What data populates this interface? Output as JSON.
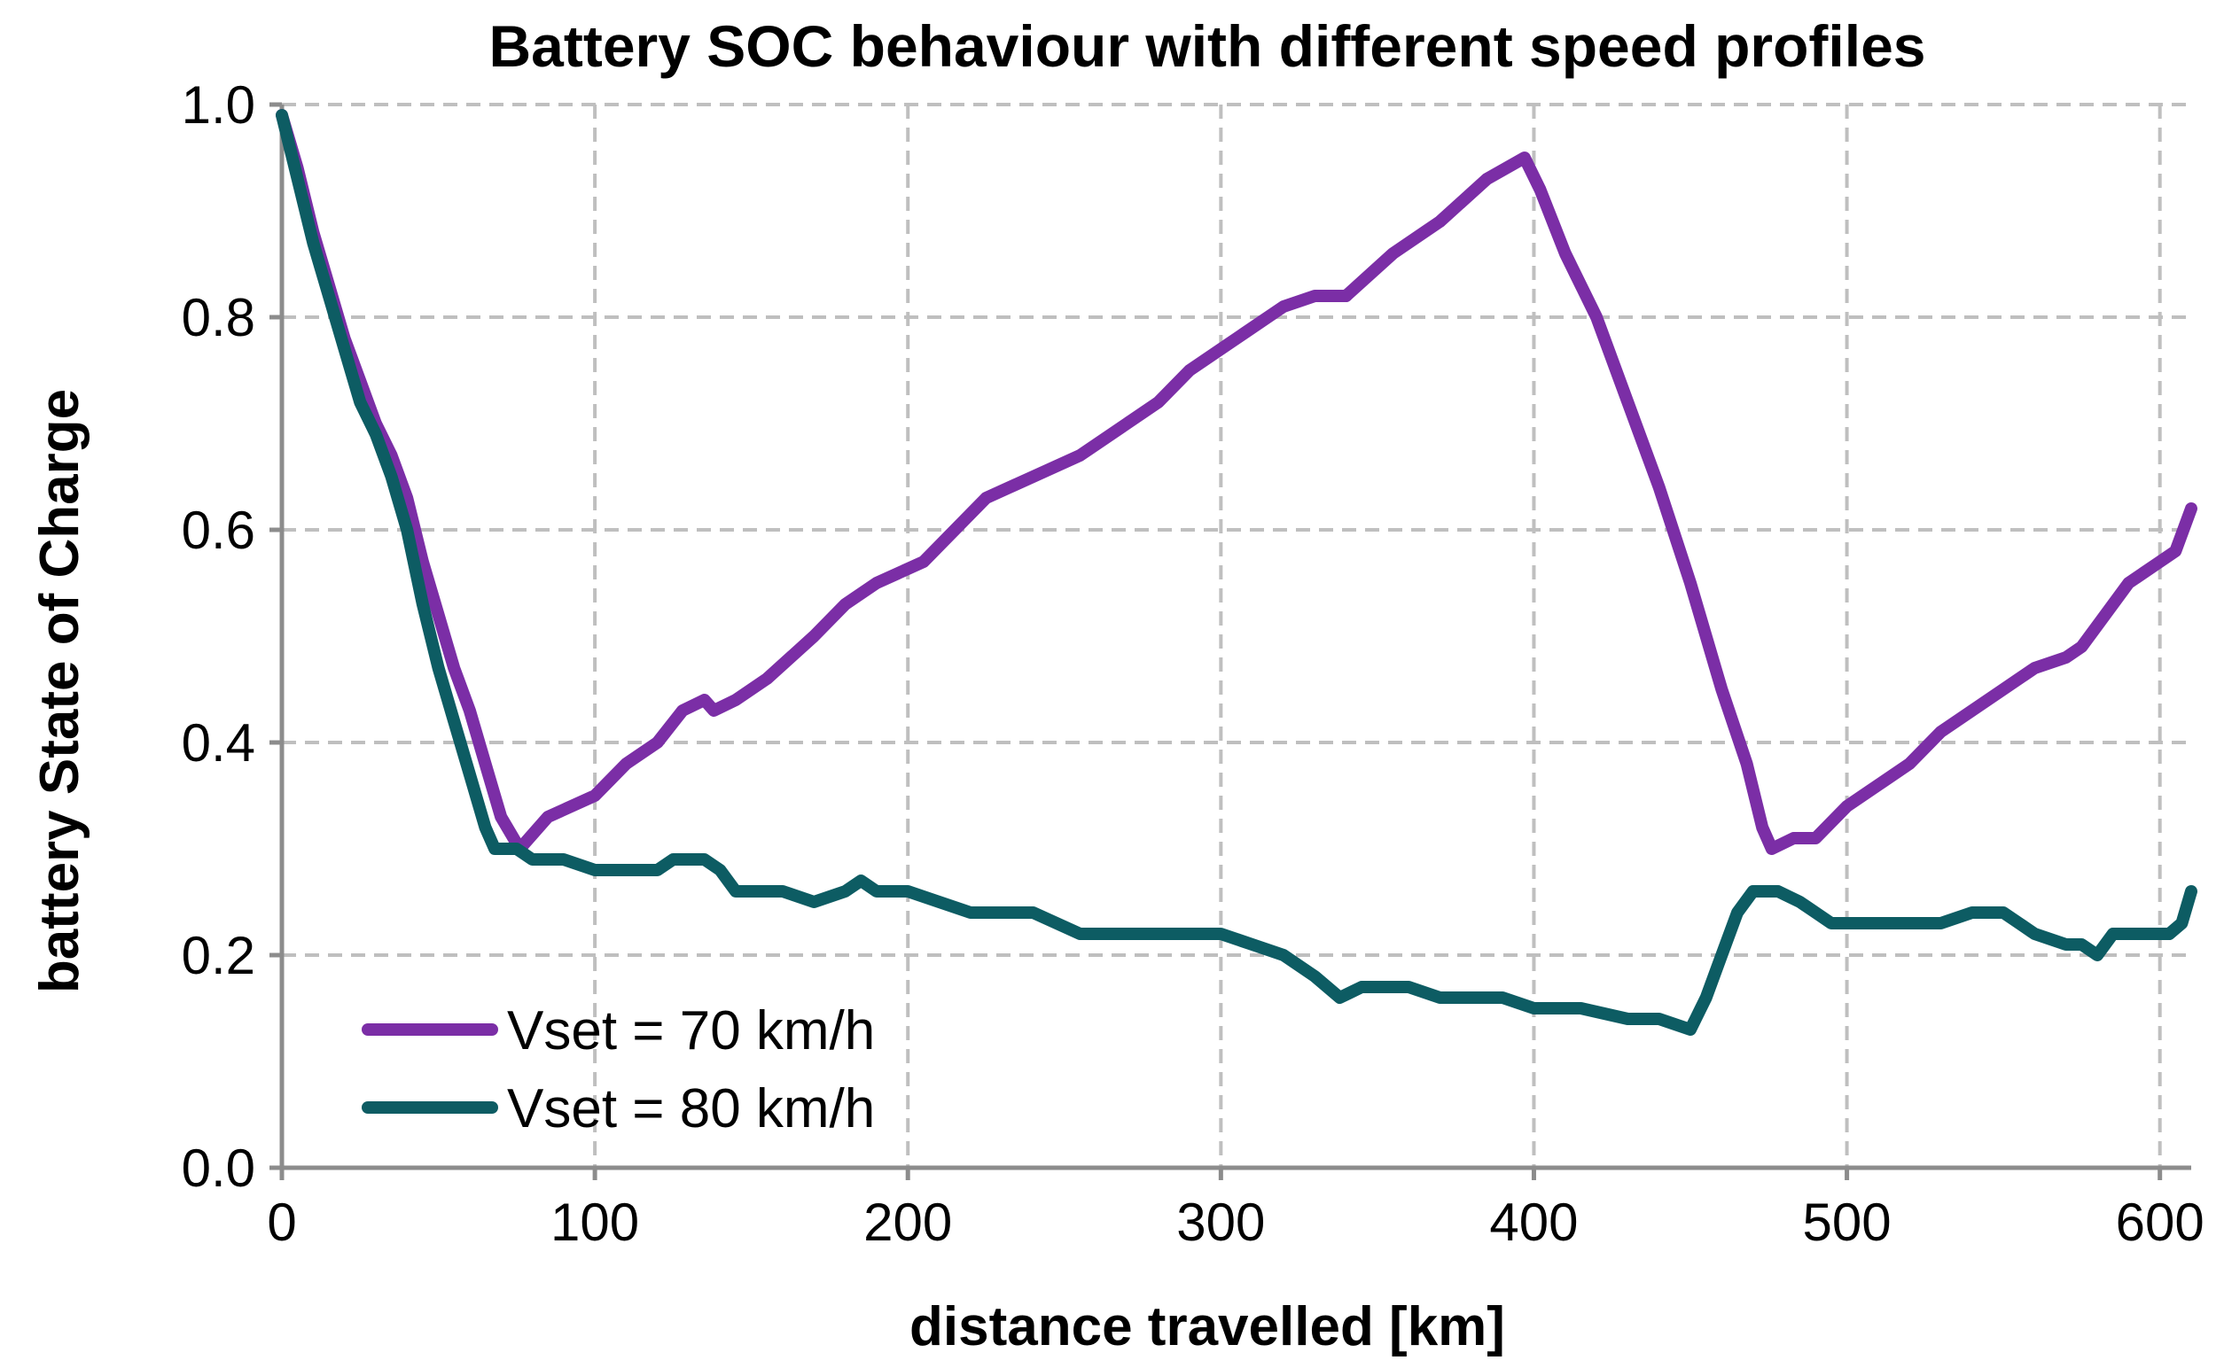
{
  "chart_data": {
    "type": "line",
    "title": "Battery SOC behaviour with different speed profiles",
    "xlabel": "distance travelled [km]",
    "ylabel": "battery State of Charge",
    "xlim": [
      0,
      610
    ],
    "ylim": [
      0.0,
      1.0
    ],
    "x_ticks": [
      0,
      100,
      200,
      300,
      400,
      500,
      600
    ],
    "x_tick_labels": [
      "0",
      "100",
      "200",
      "300",
      "400",
      "500",
      "600"
    ],
    "y_ticks": [
      0.0,
      0.2,
      0.4,
      0.6,
      0.8,
      1.0
    ],
    "y_tick_labels": [
      "0.0",
      "0.2",
      "0.4",
      "0.6",
      "0.8",
      "1.0"
    ],
    "grid": true,
    "legend_position": "bottom-left",
    "series": [
      {
        "name": "Vset = 70 km/h",
        "color": "#7b2ea6",
        "points": [
          [
            0,
            0.99
          ],
          [
            5,
            0.94
          ],
          [
            10,
            0.88
          ],
          [
            15,
            0.83
          ],
          [
            20,
            0.78
          ],
          [
            25,
            0.74
          ],
          [
            30,
            0.7
          ],
          [
            35,
            0.67
          ],
          [
            40,
            0.63
          ],
          [
            45,
            0.57
          ],
          [
            50,
            0.52
          ],
          [
            55,
            0.47
          ],
          [
            60,
            0.43
          ],
          [
            65,
            0.38
          ],
          [
            70,
            0.33
          ],
          [
            76,
            0.3
          ],
          [
            85,
            0.33
          ],
          [
            100,
            0.35
          ],
          [
            110,
            0.38
          ],
          [
            120,
            0.4
          ],
          [
            128,
            0.43
          ],
          [
            135,
            0.44
          ],
          [
            138,
            0.43
          ],
          [
            145,
            0.44
          ],
          [
            155,
            0.46
          ],
          [
            170,
            0.5
          ],
          [
            180,
            0.53
          ],
          [
            190,
            0.55
          ],
          [
            205,
            0.57
          ],
          [
            215,
            0.6
          ],
          [
            225,
            0.63
          ],
          [
            240,
            0.65
          ],
          [
            255,
            0.67
          ],
          [
            270,
            0.7
          ],
          [
            280,
            0.72
          ],
          [
            290,
            0.75
          ],
          [
            305,
            0.78
          ],
          [
            320,
            0.81
          ],
          [
            330,
            0.82
          ],
          [
            340,
            0.82
          ],
          [
            355,
            0.86
          ],
          [
            370,
            0.89
          ],
          [
            385,
            0.93
          ],
          [
            397,
            0.95
          ],
          [
            402,
            0.92
          ],
          [
            410,
            0.86
          ],
          [
            420,
            0.8
          ],
          [
            430,
            0.72
          ],
          [
            440,
            0.64
          ],
          [
            450,
            0.55
          ],
          [
            460,
            0.45
          ],
          [
            468,
            0.38
          ],
          [
            473,
            0.32
          ],
          [
            476,
            0.3
          ],
          [
            483,
            0.31
          ],
          [
            490,
            0.31
          ],
          [
            500,
            0.34
          ],
          [
            510,
            0.36
          ],
          [
            520,
            0.38
          ],
          [
            530,
            0.41
          ],
          [
            540,
            0.43
          ],
          [
            550,
            0.45
          ],
          [
            560,
            0.47
          ],
          [
            570,
            0.48
          ],
          [
            575,
            0.49
          ],
          [
            580,
            0.51
          ],
          [
            590,
            0.55
          ],
          [
            600,
            0.57
          ],
          [
            605,
            0.58
          ],
          [
            610,
            0.62
          ]
        ]
      },
      {
        "name": "Vset = 80 km/h",
        "color": "#0d5c63",
        "points": [
          [
            0,
            0.99
          ],
          [
            5,
            0.93
          ],
          [
            10,
            0.87
          ],
          [
            15,
            0.82
          ],
          [
            20,
            0.77
          ],
          [
            25,
            0.72
          ],
          [
            30,
            0.69
          ],
          [
            35,
            0.65
          ],
          [
            40,
            0.6
          ],
          [
            45,
            0.53
          ],
          [
            50,
            0.47
          ],
          [
            55,
            0.42
          ],
          [
            60,
            0.37
          ],
          [
            65,
            0.32
          ],
          [
            68,
            0.3
          ],
          [
            75,
            0.3
          ],
          [
            80,
            0.29
          ],
          [
            90,
            0.29
          ],
          [
            100,
            0.28
          ],
          [
            110,
            0.28
          ],
          [
            120,
            0.28
          ],
          [
            125,
            0.29
          ],
          [
            135,
            0.29
          ],
          [
            140,
            0.28
          ],
          [
            145,
            0.26
          ],
          [
            160,
            0.26
          ],
          [
            170,
            0.25
          ],
          [
            180,
            0.26
          ],
          [
            185,
            0.27
          ],
          [
            190,
            0.26
          ],
          [
            200,
            0.26
          ],
          [
            210,
            0.25
          ],
          [
            220,
            0.24
          ],
          [
            240,
            0.24
          ],
          [
            255,
            0.22
          ],
          [
            270,
            0.22
          ],
          [
            280,
            0.22
          ],
          [
            290,
            0.22
          ],
          [
            300,
            0.22
          ],
          [
            310,
            0.21
          ],
          [
            320,
            0.2
          ],
          [
            330,
            0.18
          ],
          [
            338,
            0.16
          ],
          [
            345,
            0.17
          ],
          [
            360,
            0.17
          ],
          [
            370,
            0.16
          ],
          [
            390,
            0.16
          ],
          [
            400,
            0.15
          ],
          [
            415,
            0.15
          ],
          [
            430,
            0.14
          ],
          [
            440,
            0.14
          ],
          [
            450,
            0.13
          ],
          [
            455,
            0.16
          ],
          [
            460,
            0.2
          ],
          [
            465,
            0.24
          ],
          [
            470,
            0.26
          ],
          [
            478,
            0.26
          ],
          [
            485,
            0.25
          ],
          [
            490,
            0.24
          ],
          [
            495,
            0.23
          ],
          [
            505,
            0.23
          ],
          [
            520,
            0.23
          ],
          [
            530,
            0.23
          ],
          [
            540,
            0.24
          ],
          [
            550,
            0.24
          ],
          [
            555,
            0.23
          ],
          [
            560,
            0.22
          ],
          [
            570,
            0.21
          ],
          [
            575,
            0.21
          ],
          [
            580,
            0.2
          ],
          [
            585,
            0.22
          ],
          [
            595,
            0.22
          ],
          [
            603,
            0.22
          ],
          [
            607,
            0.23
          ],
          [
            610,
            0.26
          ]
        ]
      }
    ]
  }
}
